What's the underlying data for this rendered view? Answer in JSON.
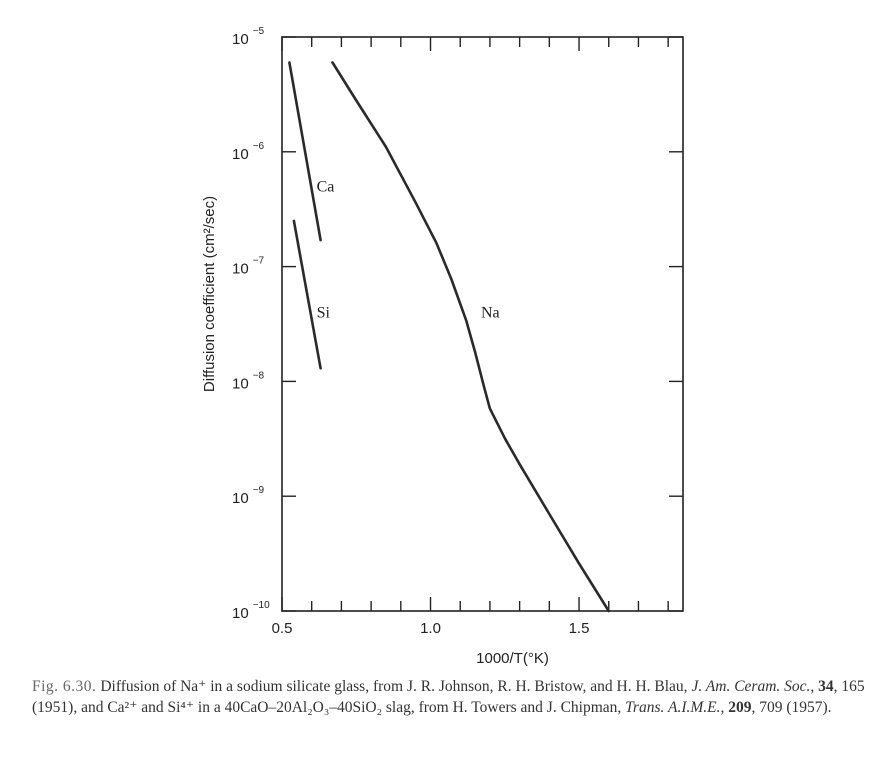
{
  "chart_data": {
    "type": "line",
    "xlabel": "1000/T(°K)",
    "ylabel": "Diffusion coefficient (cm²/sec)",
    "y_scale": "log",
    "xlim": [
      0.5,
      1.85
    ],
    "ylim": [
      1e-10,
      1e-05
    ],
    "x_ticks": [
      {
        "value": 0.5,
        "label": "0.5"
      },
      {
        "value": 1.0,
        "label": "1.0"
      },
      {
        "value": 1.5,
        "label": "1.5"
      }
    ],
    "y_ticks": [
      {
        "value": 1e-05,
        "base": "10",
        "exp": "−5"
      },
      {
        "value": 1e-06,
        "base": "10",
        "exp": "−6"
      },
      {
        "value": 1e-07,
        "base": "10",
        "exp": "−7"
      },
      {
        "value": 1e-08,
        "base": "10",
        "exp": "−8"
      },
      {
        "value": 1e-09,
        "base": "10",
        "exp": "−9"
      },
      {
        "value": 1e-10,
        "base": "10",
        "exp": "−10"
      }
    ],
    "series": [
      {
        "name": "Ca",
        "x": [
          0.525,
          0.63
        ],
        "y": [
          6e-06,
          1.7e-07
        ]
      },
      {
        "name": "Si",
        "x": [
          0.54,
          0.63
        ],
        "y": [
          2.5e-07,
          1.3e-08
        ]
      },
      {
        "name": "Na",
        "x": [
          0.67,
          0.75,
          0.85,
          0.95,
          1.02,
          1.07,
          1.12,
          1.15,
          1.18,
          1.2,
          1.25,
          1.3,
          1.4,
          1.5,
          1.6,
          1.66
        ],
        "y": [
          6e-06,
          2.8e-06,
          1.1e-06,
          3.6e-07,
          1.6e-07,
          7.8e-08,
          3.4e-08,
          1.8e-08,
          9e-09,
          5.8e-09,
          3.2e-09,
          1.9e-09,
          7e-10,
          2.6e-10,
          1e-10,
          6e-11
        ]
      }
    ],
    "grid": false
  },
  "caption": {
    "label": "Fig. 6.30.",
    "parts": [
      {
        "text": "Diffusion of Na⁺ in a sodium silicate glass, from J. R. Johnson, R. H. Bristow, and H. H. Blau, ",
        "style": ""
      },
      {
        "text": "J. Am. Ceram. Soc.",
        "style": "it"
      },
      {
        "text": ", ",
        "style": ""
      },
      {
        "text": "34",
        "style": "b"
      },
      {
        "text": ", 165 (1951), and Ca²⁺ and Si⁴⁺ in a 40CaO–20Al₂O₃–40SiO₂ slag, from H. Towers and J. Chipman, ",
        "style": ""
      },
      {
        "text": "Trans. A.I.M.E.",
        "style": "it"
      },
      {
        "text": ", ",
        "style": ""
      },
      {
        "text": "209",
        "style": "b"
      },
      {
        "text": ", 709 (1957).",
        "style": ""
      }
    ]
  }
}
